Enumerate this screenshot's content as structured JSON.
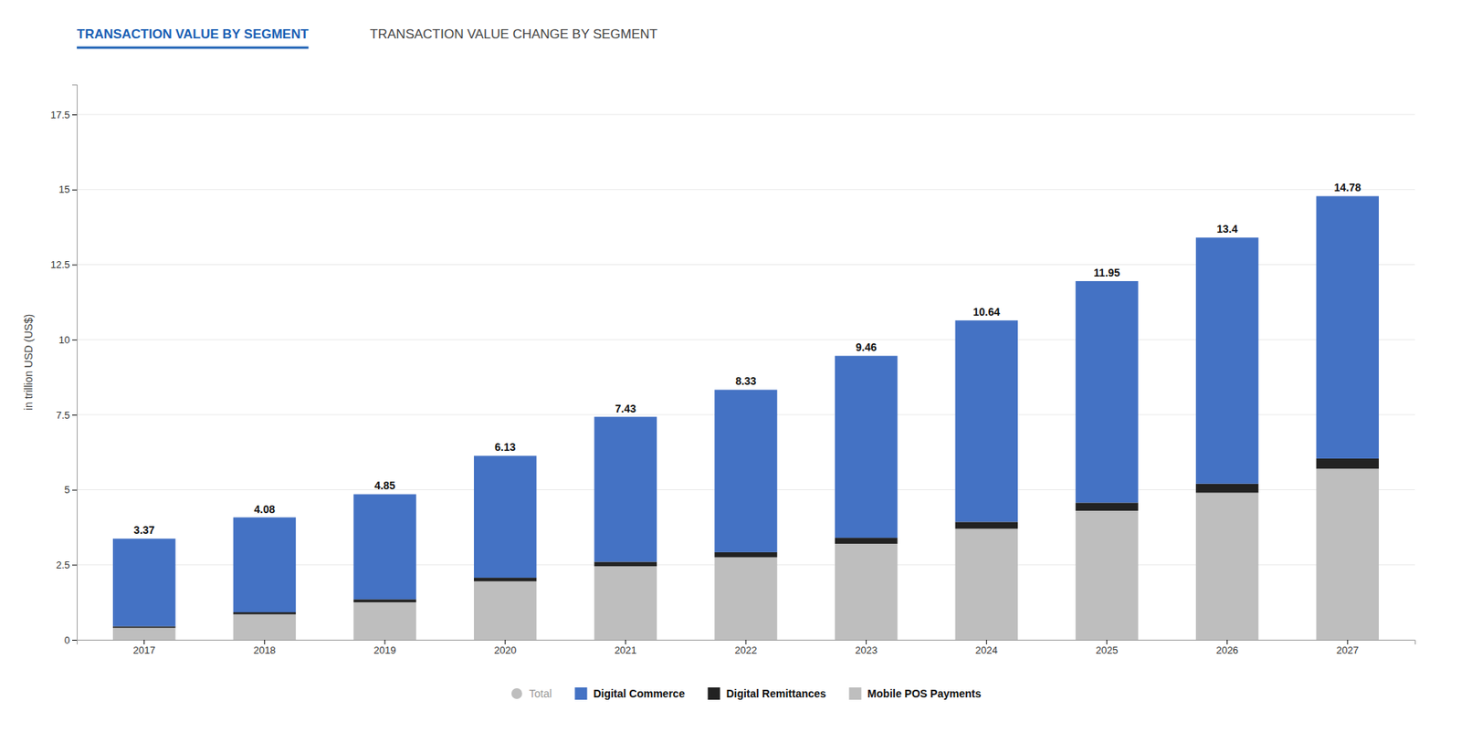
{
  "chart_data": {
    "type": "bar",
    "stacked": true,
    "title": "TRANSACTION VALUE BY SEGMENT",
    "subtitle": "TRANSACTION VALUE CHANGE BY SEGMENT",
    "ylabel": "in trillion USD (US$)",
    "categories": [
      "2017",
      "2018",
      "2019",
      "2020",
      "2021",
      "2022",
      "2023",
      "2024",
      "2025",
      "2026",
      "2027"
    ],
    "series": [
      {
        "name": "Mobile POS Payments",
        "color": "#BEBEBE",
        "values": [
          0.4,
          0.85,
          1.25,
          1.95,
          2.45,
          2.75,
          3.2,
          3.7,
          4.3,
          4.9,
          5.7
        ]
      },
      {
        "name": "Digital Remittances",
        "color": "#222222",
        "values": [
          0.05,
          0.07,
          0.1,
          0.12,
          0.15,
          0.17,
          0.2,
          0.23,
          0.27,
          0.3,
          0.34
        ]
      },
      {
        "name": "Digital Commerce",
        "color": "#4472C4",
        "values": [
          2.92,
          3.16,
          3.5,
          4.06,
          4.83,
          5.41,
          6.06,
          6.71,
          7.38,
          8.2,
          8.74
        ]
      },
      {
        "name": "Total",
        "type": "label",
        "color": "#BEBEBE",
        "marker": "circle",
        "values": [
          3.37,
          4.08,
          4.85,
          6.13,
          7.43,
          8.33,
          9.46,
          10.64,
          11.95,
          13.4,
          14.78
        ]
      }
    ],
    "data_labels": true,
    "ylim": [
      0,
      18.5
    ],
    "yticks": [
      0,
      2.5,
      5,
      7.5,
      10,
      12.5,
      15,
      17.5
    ],
    "grid": true,
    "legend": "bottom"
  }
}
